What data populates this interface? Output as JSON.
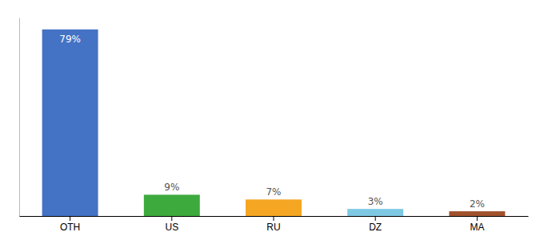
{
  "chart_data": {
    "type": "bar",
    "categories": [
      "OTH",
      "US",
      "RU",
      "DZ",
      "MA"
    ],
    "values": [
      79,
      9,
      7,
      3,
      2
    ],
    "value_labels": [
      "79%",
      "9%",
      "7%",
      "3%",
      "2%"
    ],
    "colors": [
      "#4472c4",
      "#3daa3d",
      "#f5a623",
      "#7ec8e3",
      "#a0522d"
    ],
    "ylim": [
      0,
      84
    ],
    "data_labels": true,
    "tick_labels": "x",
    "grid": false
  }
}
